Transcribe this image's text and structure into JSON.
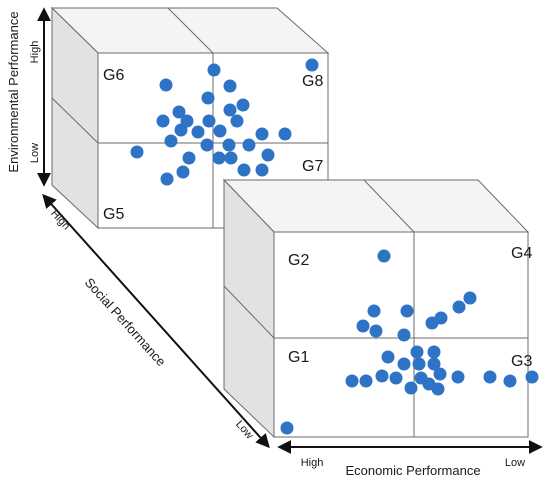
{
  "axes": {
    "environmental": {
      "label": "Environmental Performance",
      "high": "High",
      "low": "Low"
    },
    "social": {
      "label": "Social Performance",
      "high": "High",
      "low": "Low"
    },
    "economic": {
      "label": "Economic Performance",
      "high": "High",
      "low": "Low"
    }
  },
  "groups": {
    "back_cube": {
      "top_left": "G6",
      "top_right": "G8",
      "bottom_left": "G5",
      "bottom_right": "G7"
    },
    "front_cube": {
      "top_left": "G2",
      "top_right": "G4",
      "bottom_left": "G1",
      "bottom_right": "G3"
    }
  },
  "colors": {
    "point": "#2f73c6",
    "face_front": "#ffffff",
    "face_top": "#f4f4f4",
    "face_side": "#e2e2e2",
    "edge": "#6b6b6b",
    "axis": "#111111"
  }
}
